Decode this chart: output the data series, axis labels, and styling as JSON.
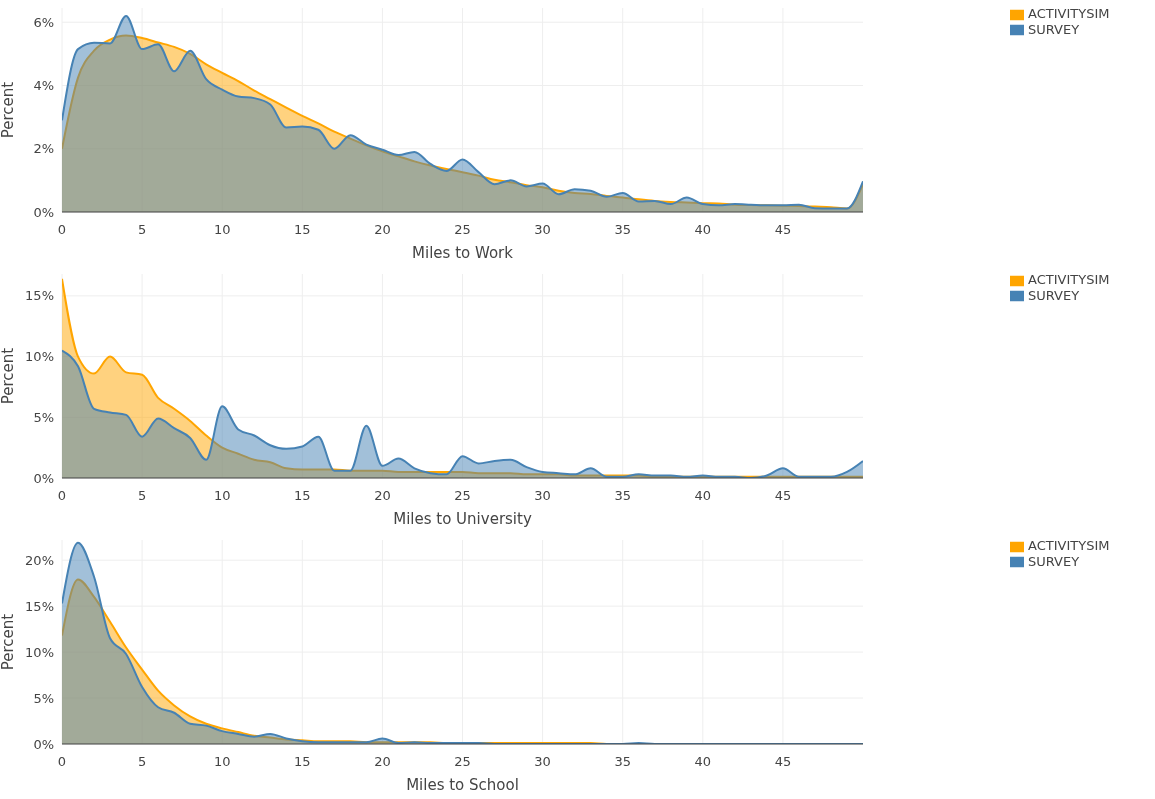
{
  "chart_data": [
    {
      "type": "area",
      "xlabel": "Miles to Work",
      "ylabel": "Percent",
      "x": [
        0,
        1,
        2,
        3,
        4,
        5,
        6,
        7,
        8,
        9,
        10,
        11,
        12,
        13,
        14,
        15,
        16,
        17,
        18,
        19,
        20,
        21,
        22,
        23,
        24,
        25,
        26,
        27,
        28,
        29,
        30,
        31,
        32,
        33,
        34,
        35,
        36,
        37,
        38,
        39,
        40,
        41,
        42,
        43,
        44,
        45,
        46,
        47,
        48,
        49,
        50
      ],
      "series": [
        {
          "name": "ACTIVITYSIM",
          "color": "#ffa500",
          "values": [
            2.0,
            4.25,
            5.1,
            5.45,
            5.58,
            5.5,
            5.36,
            5.22,
            5.0,
            4.67,
            4.4,
            4.14,
            3.84,
            3.57,
            3.3,
            3.04,
            2.8,
            2.54,
            2.32,
            2.11,
            1.92,
            1.76,
            1.6,
            1.47,
            1.36,
            1.26,
            1.15,
            1.02,
            0.94,
            0.85,
            0.78,
            0.67,
            0.6,
            0.57,
            0.51,
            0.46,
            0.4,
            0.35,
            0.32,
            0.3,
            0.28,
            0.27,
            0.23,
            0.22,
            0.21,
            0.2,
            0.19,
            0.17,
            0.15,
            0.11,
            0.88
          ]
        },
        {
          "name": "SURVEY",
          "color": "#4682b4",
          "values": [
            2.9,
            5.15,
            5.35,
            5.33,
            6.2,
            5.15,
            5.3,
            4.45,
            5.1,
            4.2,
            3.87,
            3.65,
            3.6,
            3.4,
            2.67,
            2.7,
            2.6,
            2.0,
            2.43,
            2.13,
            1.97,
            1.8,
            1.9,
            1.52,
            1.3,
            1.66,
            1.26,
            0.88,
            1.0,
            0.81,
            0.9,
            0.56,
            0.72,
            0.67,
            0.48,
            0.6,
            0.33,
            0.35,
            0.25,
            0.46,
            0.25,
            0.21,
            0.25,
            0.23,
            0.21,
            0.21,
            0.23,
            0.12,
            0.11,
            0.11,
            0.97
          ]
        }
      ],
      "xlim": [
        0,
        50
      ],
      "xticks": [
        0,
        5,
        10,
        15,
        20,
        25,
        30,
        35,
        40,
        45
      ],
      "ylim": [
        0,
        6.45
      ],
      "yticks": [
        {
          "value": 0,
          "label": "0%"
        },
        {
          "value": 2,
          "label": "2%"
        },
        {
          "value": 4,
          "label": "4%"
        },
        {
          "value": 6,
          "label": "6%"
        }
      ],
      "grid": true,
      "legend": "top right"
    },
    {
      "type": "area",
      "xlabel": "Miles to University",
      "ylabel": "Percent",
      "x": [
        0,
        1,
        2,
        3,
        4,
        5,
        6,
        7,
        8,
        9,
        10,
        11,
        12,
        13,
        14,
        15,
        16,
        17,
        18,
        19,
        20,
        21,
        22,
        23,
        24,
        25,
        26,
        27,
        28,
        29,
        30,
        31,
        32,
        33,
        34,
        35,
        36,
        37,
        38,
        39,
        40,
        41,
        42,
        43,
        44,
        45,
        46,
        47,
        48,
        49,
        50
      ],
      "series": [
        {
          "name": "ACTIVITYSIM",
          "color": "#ffa500",
          "values": [
            16.4,
            10.0,
            8.6,
            10.0,
            8.7,
            8.5,
            6.6,
            5.7,
            4.7,
            3.5,
            2.5,
            2.0,
            1.5,
            1.3,
            0.8,
            0.7,
            0.7,
            0.7,
            0.6,
            0.6,
            0.6,
            0.5,
            0.5,
            0.5,
            0.5,
            0.5,
            0.4,
            0.4,
            0.4,
            0.3,
            0.3,
            0.3,
            0.2,
            0.2,
            0.2,
            0.2,
            0.2,
            0.1,
            0.1,
            0.1,
            0.1,
            0.1,
            0.1,
            0.1,
            0.1,
            0.1,
            0.1,
            0.1,
            0.1,
            0.1,
            0.1
          ]
        },
        {
          "name": "SURVEY",
          "color": "#4682b4",
          "values": [
            10.5,
            9.2,
            5.7,
            5.4,
            5.2,
            3.4,
            4.9,
            4.1,
            3.3,
            1.5,
            5.9,
            4.0,
            3.5,
            2.7,
            2.4,
            2.6,
            3.4,
            0.6,
            0.6,
            4.3,
            1.0,
            1.6,
            0.8,
            0.4,
            0.3,
            1.8,
            1.2,
            1.4,
            1.5,
            0.9,
            0.5,
            0.4,
            0.3,
            0.8,
            0.1,
            0.1,
            0.3,
            0.2,
            0.2,
            0.1,
            0.2,
            0.1,
            0.1,
            0.0,
            0.2,
            0.8,
            0.1,
            0.1,
            0.1,
            0.5,
            1.4
          ]
        }
      ],
      "xlim": [
        0,
        50
      ],
      "xticks": [
        0,
        5,
        10,
        15,
        20,
        25,
        30,
        35,
        40,
        45
      ],
      "ylim": [
        0,
        16.8
      ],
      "yticks": [
        {
          "value": 0,
          "label": "0%"
        },
        {
          "value": 5,
          "label": "5%"
        },
        {
          "value": 10,
          "label": "10%"
        },
        {
          "value": 15,
          "label": "15%"
        }
      ],
      "grid": true,
      "legend": "top right"
    },
    {
      "type": "area",
      "xlabel": "Miles to School",
      "ylabel": "Percent",
      "x": [
        0,
        1,
        2,
        3,
        4,
        5,
        6,
        7,
        8,
        9,
        10,
        11,
        12,
        13,
        14,
        15,
        16,
        17,
        18,
        19,
        20,
        21,
        22,
        23,
        24,
        25,
        26,
        27,
        28,
        29,
        30,
        31,
        32,
        33,
        34,
        35,
        36,
        37,
        38,
        39,
        40,
        41,
        42,
        43,
        44,
        45,
        46,
        47,
        48,
        49,
        50
      ],
      "series": [
        {
          "name": "ACTIVITYSIM",
          "color": "#ffa500",
          "values": [
            11.8,
            17.9,
            16.0,
            13.3,
            10.5,
            8.1,
            5.8,
            4.2,
            3.0,
            2.2,
            1.7,
            1.3,
            0.9,
            0.7,
            0.5,
            0.4,
            0.3,
            0.3,
            0.3,
            0.2,
            0.2,
            0.2,
            0.2,
            0.2,
            0.1,
            0.1,
            0.1,
            0.1,
            0.1,
            0.1,
            0.1,
            0.1,
            0.1,
            0.1,
            0,
            0,
            0,
            0,
            0,
            0,
            0,
            0,
            0,
            0,
            0,
            0,
            0,
            0,
            0,
            0,
            0
          ]
        },
        {
          "name": "SURVEY",
          "color": "#4682b4",
          "values": [
            15.3,
            21.9,
            18.2,
            11.5,
            9.8,
            6.2,
            4.0,
            3.4,
            2.2,
            2.0,
            1.4,
            1.1,
            0.8,
            1.1,
            0.6,
            0.3,
            0.2,
            0.2,
            0.2,
            0.2,
            0.6,
            0.1,
            0.2,
            0.1,
            0.1,
            0.1,
            0.1,
            0,
            0,
            0,
            0,
            0,
            0,
            0,
            0,
            0,
            0.1,
            0,
            0,
            0,
            0,
            0,
            0,
            0,
            0,
            0,
            0,
            0,
            0,
            0,
            0
          ]
        }
      ],
      "xlim": [
        0,
        50
      ],
      "xticks": [
        0,
        5,
        10,
        15,
        20,
        25,
        30,
        35,
        40,
        45
      ],
      "ylim": [
        0,
        22.2
      ],
      "yticks": [
        {
          "value": 0,
          "label": "0%"
        },
        {
          "value": 5,
          "label": "5%"
        },
        {
          "value": 10,
          "label": "10%"
        },
        {
          "value": 15,
          "label": "15%"
        },
        {
          "value": 20,
          "label": "20%"
        }
      ],
      "grid": true,
      "legend": "top right"
    }
  ]
}
